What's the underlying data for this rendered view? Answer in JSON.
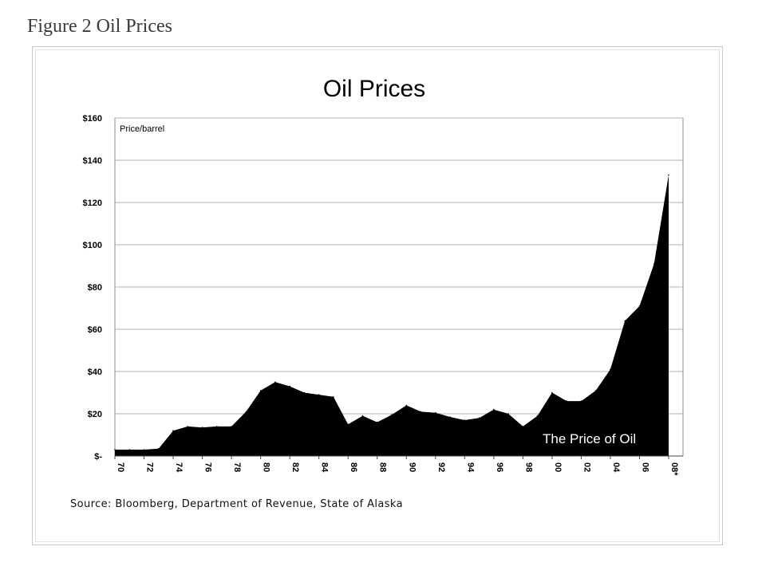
{
  "caption": "Figure 2 Oil Prices",
  "source": "Source: Bloomberg, Department of Revenue, State of Alaska",
  "chart_data": {
    "type": "area",
    "title": "Oil Prices",
    "ylabel": "Price/barrel",
    "annotation": "The Price of Oil",
    "ylim": [
      0,
      160
    ],
    "yticks": [
      0,
      20,
      40,
      60,
      80,
      100,
      120,
      140,
      160
    ],
    "ytick_labels": [
      "$-",
      "$20",
      "$40",
      "$60",
      "$80",
      "$100",
      "$120",
      "$140",
      "$160"
    ],
    "xlim": [
      1970,
      2008
    ],
    "xticks": [
      1970,
      1972,
      1974,
      1976,
      1978,
      1980,
      1982,
      1984,
      1986,
      1988,
      1990,
      1992,
      1994,
      1996,
      1998,
      2000,
      2002,
      2004,
      2006,
      2008
    ],
    "xtick_labels": [
      "70",
      "72",
      "74",
      "76",
      "78",
      "80",
      "82",
      "84",
      "86",
      "88",
      "90",
      "92",
      "94",
      "96",
      "98",
      "00",
      "02",
      "04",
      "06",
      "08*"
    ],
    "grid": true,
    "fill_color": "#000000",
    "x": [
      1970,
      1971,
      1972,
      1973,
      1974,
      1975,
      1976,
      1977,
      1978,
      1979,
      1980,
      1981,
      1982,
      1983,
      1984,
      1985,
      1986,
      1987,
      1988,
      1989,
      1990,
      1991,
      1992,
      1993,
      1994,
      1995,
      1996,
      1997,
      1998,
      1999,
      2000,
      2001,
      2002,
      2003,
      2004,
      2005,
      2006,
      2007,
      2008
    ],
    "values": [
      3,
      3,
      3,
      3.5,
      12,
      14,
      13.5,
      14,
      14,
      21,
      31,
      35,
      33,
      30,
      29,
      28,
      15,
      19,
      16,
      19.5,
      24,
      21,
      20.5,
      18.5,
      17,
      18,
      22,
      20,
      14,
      19,
      30,
      26,
      26,
      31,
      41,
      64,
      71,
      91,
      133
    ]
  }
}
